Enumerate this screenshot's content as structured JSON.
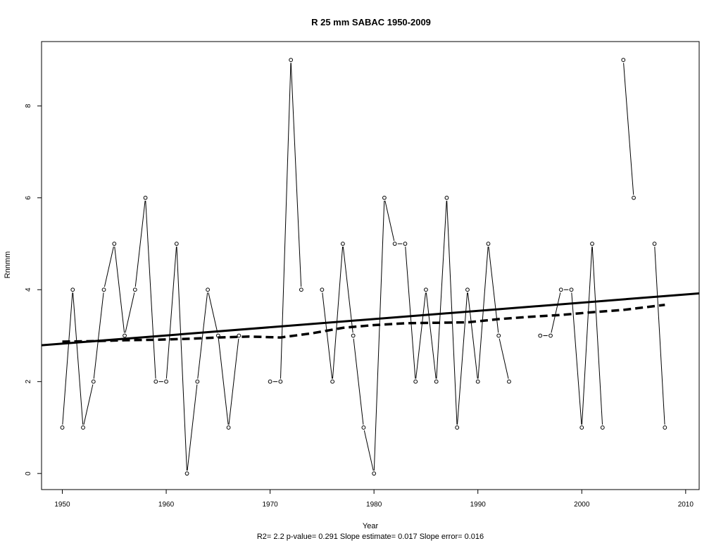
{
  "chart_data": {
    "type": "line",
    "title": "R   25   mm   SABAC 1950-2009",
    "xlabel": "Year",
    "ylabel": "Rnnmm",
    "subtitle": "R2= 2.2  p-value= 0.291  Slope estimate= 0.017  Slope error= 0.016",
    "xlim": [
      1948,
      2011.3
    ],
    "ylim": [
      -0.35,
      9.4
    ],
    "xticks": [
      1950,
      1960,
      1970,
      1980,
      1990,
      2000,
      2010
    ],
    "yticks": [
      0,
      2,
      4,
      6,
      8
    ],
    "grid": false,
    "series": [
      {
        "style": "line-with-points",
        "x": [
          1950,
          1951,
          1952,
          1953,
          1954,
          1955,
          1956,
          1957,
          1958,
          1959,
          1960,
          1961,
          1962,
          1963,
          1964,
          1965,
          1966,
          1967,
          1968,
          1969,
          1970,
          1971,
          1972,
          1973,
          1974,
          1975,
          1976,
          1977,
          1978,
          1979,
          1980,
          1981,
          1982,
          1983,
          1984,
          1985,
          1986,
          1987,
          1988,
          1989,
          1990,
          1991,
          1992,
          1993,
          1994,
          1995,
          1996,
          1997,
          1998,
          1999,
          2000,
          2001,
          2002,
          2003,
          2004,
          2005,
          2006,
          2007,
          2008
        ],
        "y": [
          1,
          4,
          1,
          2,
          4,
          5,
          3,
          4,
          6,
          2,
          2,
          5,
          0,
          2,
          4,
          3,
          1,
          3,
          null,
          null,
          2,
          2,
          9,
          4,
          null,
          4,
          2,
          5,
          3,
          1,
          0,
          6,
          5,
          5,
          2,
          4,
          2,
          6,
          1,
          4,
          2,
          5,
          3,
          2,
          null,
          null,
          3,
          3,
          4,
          4,
          1,
          5,
          1,
          null,
          9,
          6,
          null,
          5,
          1
        ]
      },
      {
        "style": "solid-thick",
        "x": [
          1948,
          2011.3
        ],
        "y": [
          2.79,
          3.92
        ]
      },
      {
        "style": "dashed-thick",
        "x": [
          1950,
          1953,
          1956,
          1959,
          1962,
          1965,
          1968,
          1971,
          1974,
          1977,
          1980,
          1983,
          1986,
          1989,
          1992,
          1995,
          1998,
          2001,
          2004,
          2008
        ],
        "y": [
          2.87,
          2.88,
          2.9,
          2.91,
          2.93,
          2.96,
          2.98,
          2.96,
          3.05,
          3.17,
          3.23,
          3.27,
          3.28,
          3.29,
          3.36,
          3.41,
          3.45,
          3.51,
          3.56,
          3.67
        ]
      }
    ]
  }
}
